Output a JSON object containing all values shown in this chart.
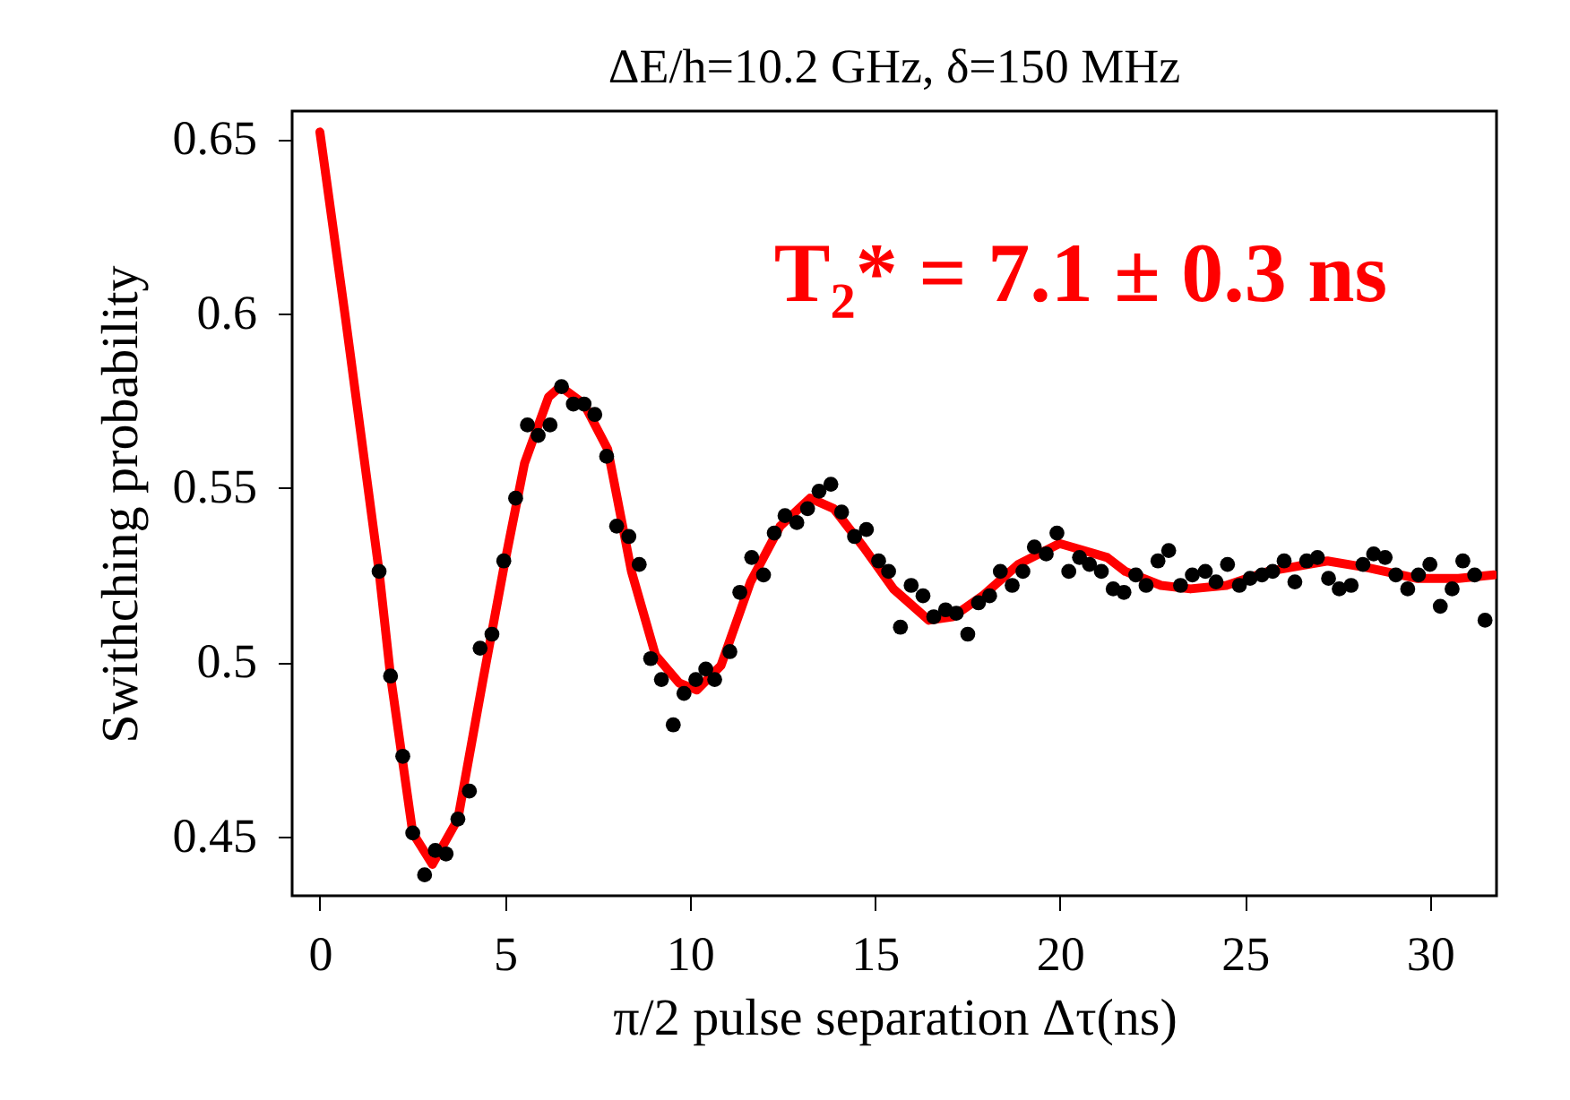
{
  "chart_data": {
    "type": "scatter",
    "title": "ΔE/h=10.2 GHz, δ=150 MHz",
    "xlabel": "π/2 pulse separation Δτ(ns)",
    "ylabel": "Swithching probability",
    "annotations": [
      "T₂* = 7.1 ± 0.3 ns"
    ],
    "xlim": [
      -0.75,
      31.8
    ],
    "ylim": [
      0.433,
      0.658
    ],
    "xticks": [
      0,
      5,
      10,
      15,
      20,
      25,
      30
    ],
    "yticks": [
      0.45,
      0.5,
      0.55,
      0.6,
      0.65
    ],
    "series": [
      {
        "type": "line",
        "color": "#ff0000",
        "x": [
          0,
          0.7,
          1.6,
          1.91,
          2.51,
          3.04,
          3.73,
          4.41,
          4.97,
          5.53,
          6.18,
          6.5,
          7.14,
          7.78,
          8.42,
          9.07,
          9.71,
          10.19,
          10.84,
          11.64,
          12.44,
          13.25,
          13.89,
          14.69,
          15.5,
          16.46,
          17.1,
          17.91,
          18.87,
          19.99,
          20.64,
          21.28,
          21.77,
          22.73,
          23.53,
          24.5,
          25.62,
          27.23,
          28.36,
          29.64,
          30.77,
          31.73
        ],
        "values": [
          0.652,
          0.598,
          0.526,
          0.496,
          0.451,
          0.442,
          0.455,
          0.495,
          0.527,
          0.557,
          0.576,
          0.579,
          0.574,
          0.561,
          0.526,
          0.502,
          0.494,
          0.492,
          0.499,
          0.523,
          0.539,
          0.547,
          0.544,
          0.533,
          0.521,
          0.512,
          0.513,
          0.519,
          0.528,
          0.534,
          0.532,
          0.53,
          0.526,
          0.522,
          0.521,
          0.522,
          0.526,
          0.529,
          0.527,
          0.524,
          0.524,
          0.525
        ]
      },
      {
        "color": "#000000",
        "marker": "circle",
        "x": [
          1.6,
          1.91,
          2.24,
          2.51,
          2.83,
          3.12,
          3.41,
          3.73,
          4.04,
          4.33,
          4.65,
          4.97,
          5.29,
          5.61,
          5.9,
          6.22,
          6.53,
          6.85,
          7.14,
          7.43,
          7.75,
          8.02,
          8.35,
          8.63,
          8.94,
          9.23,
          9.55,
          9.84,
          10.16,
          10.43,
          10.67,
          11.08,
          11.35,
          11.67,
          11.99,
          12.28,
          12.57,
          12.89,
          13.18,
          13.49,
          13.81,
          14.1,
          14.45,
          14.77,
          15.1,
          15.37,
          15.69,
          15.98,
          16.3,
          16.59,
          16.91,
          17.2,
          17.51,
          17.8,
          18.1,
          18.39,
          18.71,
          19.0,
          19.31,
          19.63,
          19.92,
          20.24,
          20.53,
          20.8,
          21.12,
          21.44,
          21.73,
          22.05,
          22.33,
          22.65,
          22.94,
          23.26,
          23.58,
          23.93,
          24.22,
          24.53,
          24.85,
          25.14,
          25.46,
          25.75,
          26.06,
          26.35,
          26.67,
          26.96,
          27.26,
          27.55,
          27.87,
          28.19,
          28.48,
          28.79,
          29.08,
          29.4,
          29.69,
          30.0,
          30.28,
          30.6,
          30.89,
          31.21,
          31.49
        ],
        "values": [
          0.526,
          0.496,
          0.473,
          0.451,
          0.439,
          0.446,
          0.445,
          0.455,
          0.463,
          0.504,
          0.508,
          0.529,
          0.547,
          0.568,
          0.565,
          0.568,
          0.579,
          0.574,
          0.574,
          0.571,
          0.559,
          0.539,
          0.536,
          0.528,
          0.501,
          0.495,
          0.482,
          0.491,
          0.495,
          0.498,
          0.495,
          0.503,
          0.52,
          0.53,
          0.525,
          0.537,
          0.542,
          0.54,
          0.544,
          0.549,
          0.551,
          0.543,
          0.536,
          0.538,
          0.529,
          0.526,
          0.51,
          0.522,
          0.519,
          0.513,
          0.515,
          0.514,
          0.508,
          0.517,
          0.519,
          0.526,
          0.522,
          0.526,
          0.533,
          0.531,
          0.537,
          0.526,
          0.53,
          0.528,
          0.526,
          0.521,
          0.52,
          0.525,
          0.522,
          0.529,
          0.532,
          0.522,
          0.525,
          0.526,
          0.523,
          0.528,
          0.522,
          0.524,
          0.525,
          0.526,
          0.529,
          0.523,
          0.529,
          0.53,
          0.524,
          0.521,
          0.522,
          0.528,
          0.531,
          0.53,
          0.525,
          0.521,
          0.525,
          0.528,
          0.516,
          0.521,
          0.529,
          0.525,
          0.512
        ]
      }
    ]
  }
}
